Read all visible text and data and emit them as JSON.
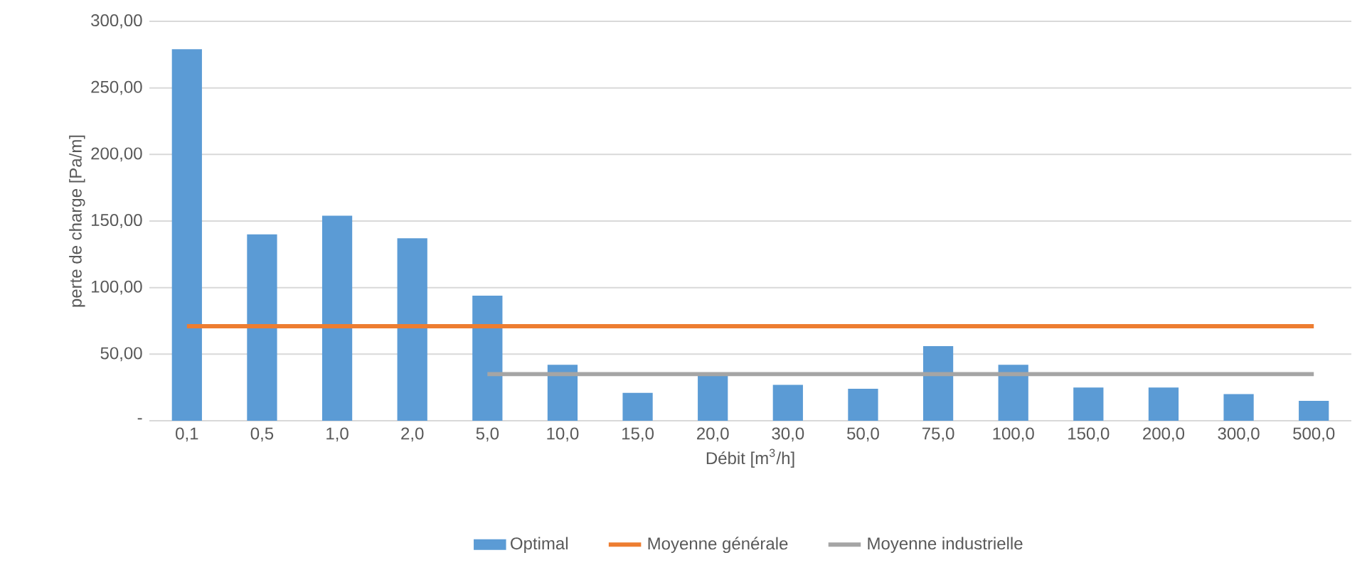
{
  "chart_data": {
    "type": "bar",
    "xlabel": "Débit [m$^{3}$/h]",
    "ylabel": "perte de charge [Pa/m]",
    "categories": [
      "0,1",
      "0,5",
      "1,0",
      "2,0",
      "5,0",
      "10,0",
      "15,0",
      "20,0",
      "30,0",
      "50,0",
      "75,0",
      "100,0",
      "150,0",
      "200,0",
      "300,0",
      "500,0"
    ],
    "series": [
      {
        "name": "Optimal",
        "color": "#5b9bd5",
        "values": [
          279,
          140,
          154,
          137,
          94,
          42,
          21,
          35,
          27,
          24,
          56,
          42,
          25,
          25,
          20,
          15
        ]
      },
      {
        "name": "Moyenne générale",
        "type": "line",
        "color": "#ed7d31",
        "values": [
          71,
          71,
          71,
          71,
          71,
          71,
          71,
          71,
          71,
          71,
          71,
          71,
          71,
          71,
          71,
          71
        ]
      },
      {
        "name": "Moyenne industrielle",
        "type": "line",
        "color": "#a5a5a5",
        "values": [
          null,
          null,
          null,
          null,
          35,
          35,
          35,
          35,
          35,
          35,
          35,
          35,
          35,
          35,
          35,
          35
        ]
      }
    ],
    "ylim": [
      0,
      300
    ],
    "yticks": [
      {
        "value": 0,
        "label": "-"
      },
      {
        "value": 50,
        "label": "50,00"
      },
      {
        "value": 100,
        "label": "100,00"
      },
      {
        "value": 150,
        "label": "150,00"
      },
      {
        "value": 200,
        "label": "200,00"
      },
      {
        "value": 250,
        "label": "250,00"
      },
      {
        "value": 300,
        "label": "300,00"
      }
    ],
    "grid": "y",
    "legend": "bottom",
    "marker": "none"
  }
}
